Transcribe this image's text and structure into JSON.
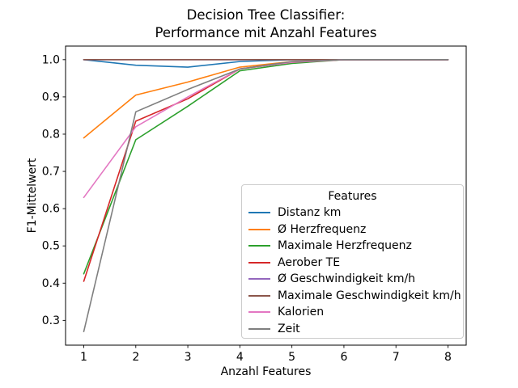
{
  "chart_data": {
    "type": "line",
    "title": "Decision Tree Classifier:\nPerformance mit Anzahl Features",
    "xlabel": "Anzahl Features",
    "ylabel": "F1-Mittelwert",
    "legend_title": "Features",
    "legend_position": "lower right inside axes",
    "grid": false,
    "background_color": "#ffffff",
    "spine_color": "#000000",
    "legend_border_color": "#cccccc",
    "x": [
      1,
      2,
      3,
      4,
      5,
      6,
      7,
      8
    ],
    "xticks": [
      1,
      2,
      3,
      4,
      5,
      6,
      7,
      8
    ],
    "yticks": [
      0.3,
      0.4,
      0.5,
      0.6,
      0.7,
      0.8,
      0.9,
      1.0
    ],
    "xlim": [
      0.65,
      8.35
    ],
    "ylim": [
      0.2335,
      1.0365
    ],
    "series": [
      {
        "name": "Distanz km",
        "color": "#1f77b4",
        "values": [
          1.0,
          0.985,
          0.98,
          0.995,
          1.0,
          1.0,
          1.0,
          1.0
        ]
      },
      {
        "name": "Ø Herzfrequenz",
        "color": "#ff7f0e",
        "values": [
          0.79,
          0.905,
          0.94,
          0.98,
          0.995,
          1.0,
          1.0,
          1.0
        ]
      },
      {
        "name": "Maximale Herzfrequenz",
        "color": "#2ca02c",
        "values": [
          0.425,
          0.785,
          0.875,
          0.97,
          0.99,
          1.0,
          1.0,
          1.0
        ]
      },
      {
        "name": "Aerober TE",
        "color": "#d62728",
        "values": [
          0.405,
          0.835,
          0.895,
          0.975,
          0.993,
          1.0,
          1.0,
          1.0
        ]
      },
      {
        "name": "Ø Geschwindigkeit km/h",
        "color": "#9467bd",
        "values": [
          1.0,
          1.0,
          1.0,
          1.0,
          1.0,
          1.0,
          1.0,
          1.0
        ]
      },
      {
        "name": "Maximale Geschwindigkeit km/h",
        "color": "#8c564b",
        "values": [
          1.0,
          1.0,
          1.0,
          1.0,
          1.0,
          1.0,
          1.0,
          1.0
        ]
      },
      {
        "name": "Kalorien",
        "color": "#e377c2",
        "values": [
          0.63,
          0.82,
          0.9,
          0.975,
          0.993,
          1.0,
          1.0,
          1.0
        ]
      },
      {
        "name": "Zeit",
        "color": "#7f7f7f",
        "values": [
          0.27,
          0.86,
          0.92,
          0.975,
          0.995,
          1.0,
          1.0,
          1.0
        ]
      }
    ]
  }
}
